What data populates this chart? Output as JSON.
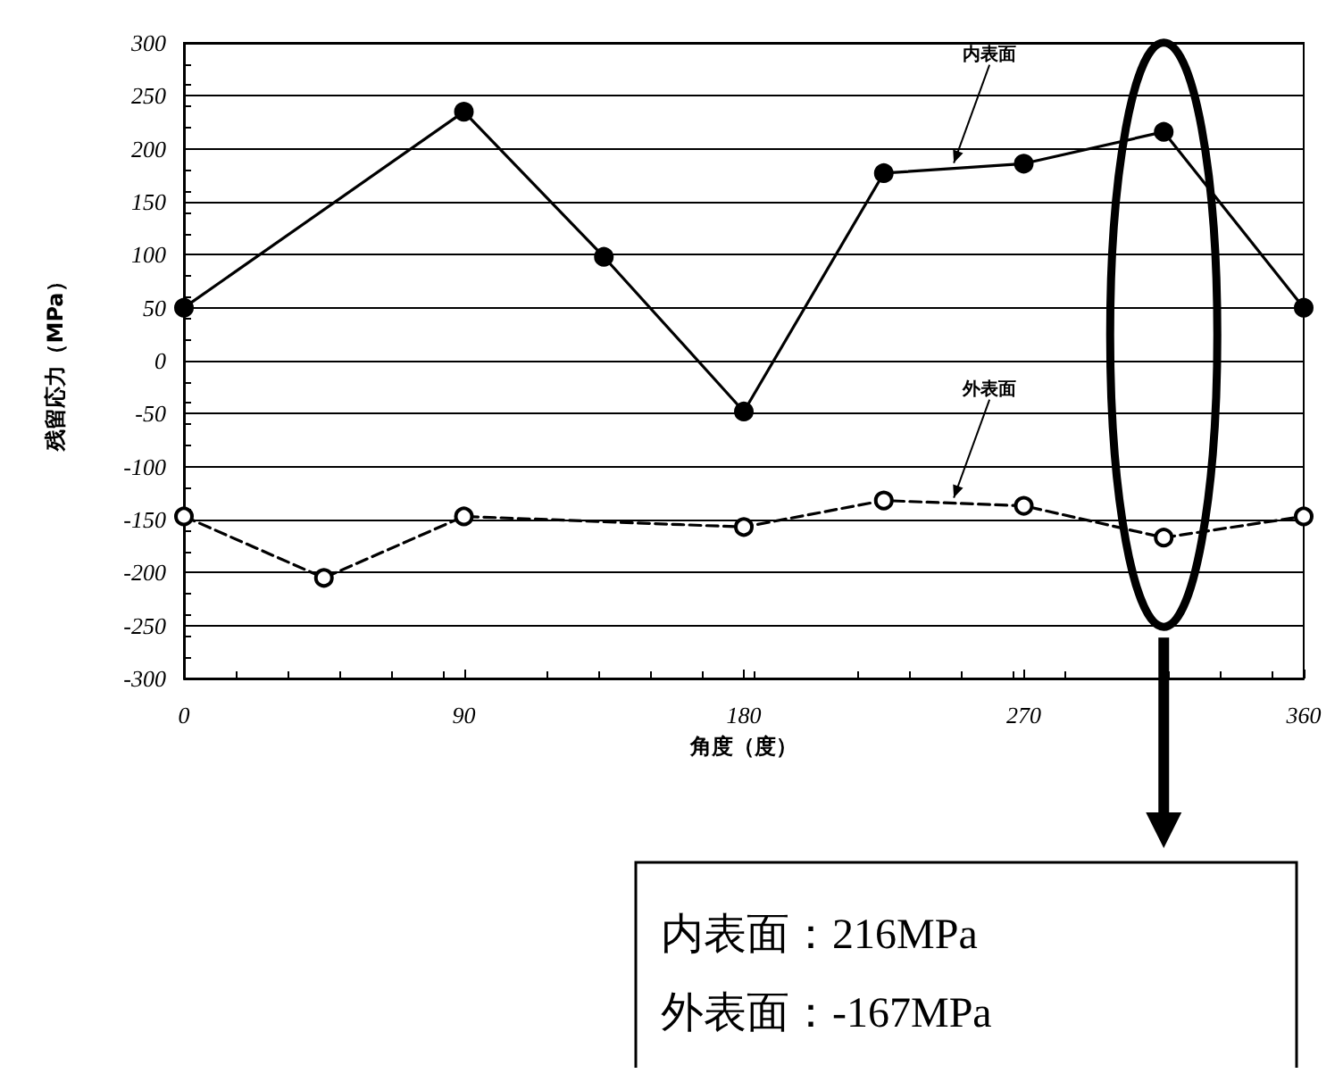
{
  "chart_data": {
    "type": "line",
    "xlabel": "角度（度）",
    "ylabel": "残留応力（MPa）",
    "xlim": [
      0,
      360
    ],
    "xticks": [
      0,
      90,
      180,
      270,
      360
    ],
    "ylim": [
      -300,
      300
    ],
    "yticks": [
      -300,
      -250,
      -200,
      -150,
      -100,
      -50,
      0,
      50,
      100,
      150,
      200,
      250,
      300
    ],
    "grid": "y",
    "legend": false,
    "marker": "circle",
    "series": [
      {
        "name": "内表面",
        "color": "#000000",
        "line_style": "solid",
        "x": [
          0,
          90,
          135,
          180,
          225,
          270,
          315,
          360
        ],
        "values": [
          50,
          235,
          98,
          -48,
          177,
          186,
          216,
          50
        ]
      },
      {
        "name": "外表面",
        "color": "#000000",
        "line_style": "dashed",
        "x": [
          0,
          45,
          90,
          180,
          225,
          270,
          315,
          360
        ],
        "values": [
          -147,
          -205,
          -147,
          -157,
          -132,
          -137,
          -167,
          -147
        ]
      }
    ],
    "annotations": [
      "内表面：216MPa",
      "外表面：-167MPa"
    ]
  }
}
